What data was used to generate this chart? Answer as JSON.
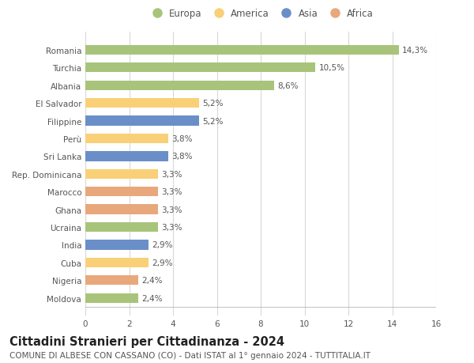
{
  "countries": [
    "Moldova",
    "Nigeria",
    "Cuba",
    "India",
    "Ucraina",
    "Ghana",
    "Marocco",
    "Rep. Dominicana",
    "Sri Lanka",
    "Perù",
    "Filippine",
    "El Salvador",
    "Albania",
    "Turchia",
    "Romania"
  ],
  "values": [
    2.4,
    2.4,
    2.9,
    2.9,
    3.3,
    3.3,
    3.3,
    3.3,
    3.8,
    3.8,
    5.2,
    5.2,
    8.6,
    10.5,
    14.3
  ],
  "labels": [
    "2,4%",
    "2,4%",
    "2,9%",
    "2,9%",
    "3,3%",
    "3,3%",
    "3,3%",
    "3,3%",
    "3,8%",
    "3,8%",
    "5,2%",
    "5,2%",
    "8,6%",
    "10,5%",
    "14,3%"
  ],
  "continents": [
    "Europa",
    "Africa",
    "America",
    "Asia",
    "Europa",
    "Africa",
    "Africa",
    "America",
    "Asia",
    "America",
    "Asia",
    "America",
    "Europa",
    "Europa",
    "Europa"
  ],
  "continent_colors": {
    "Europa": "#a8c47a",
    "America": "#f9d077",
    "Asia": "#6a8fc8",
    "Africa": "#e8a87c"
  },
  "legend_order": [
    "Europa",
    "America",
    "Asia",
    "Africa"
  ],
  "title": "Cittadini Stranieri per Cittadinanza - 2024",
  "subtitle": "COMUNE DI ALBESE CON CASSANO (CO) - Dati ISTAT al 1° gennaio 2024 - TUTTITALIA.IT",
  "xlim": [
    0,
    16
  ],
  "xticks": [
    0,
    2,
    4,
    6,
    8,
    10,
    12,
    14,
    16
  ],
  "background_color": "#ffffff",
  "grid_color": "#d8d8d8",
  "bar_height": 0.55,
  "label_fontsize": 7.5,
  "title_fontsize": 10.5,
  "subtitle_fontsize": 7.5,
  "tick_fontsize": 7.5,
  "legend_fontsize": 8.5
}
